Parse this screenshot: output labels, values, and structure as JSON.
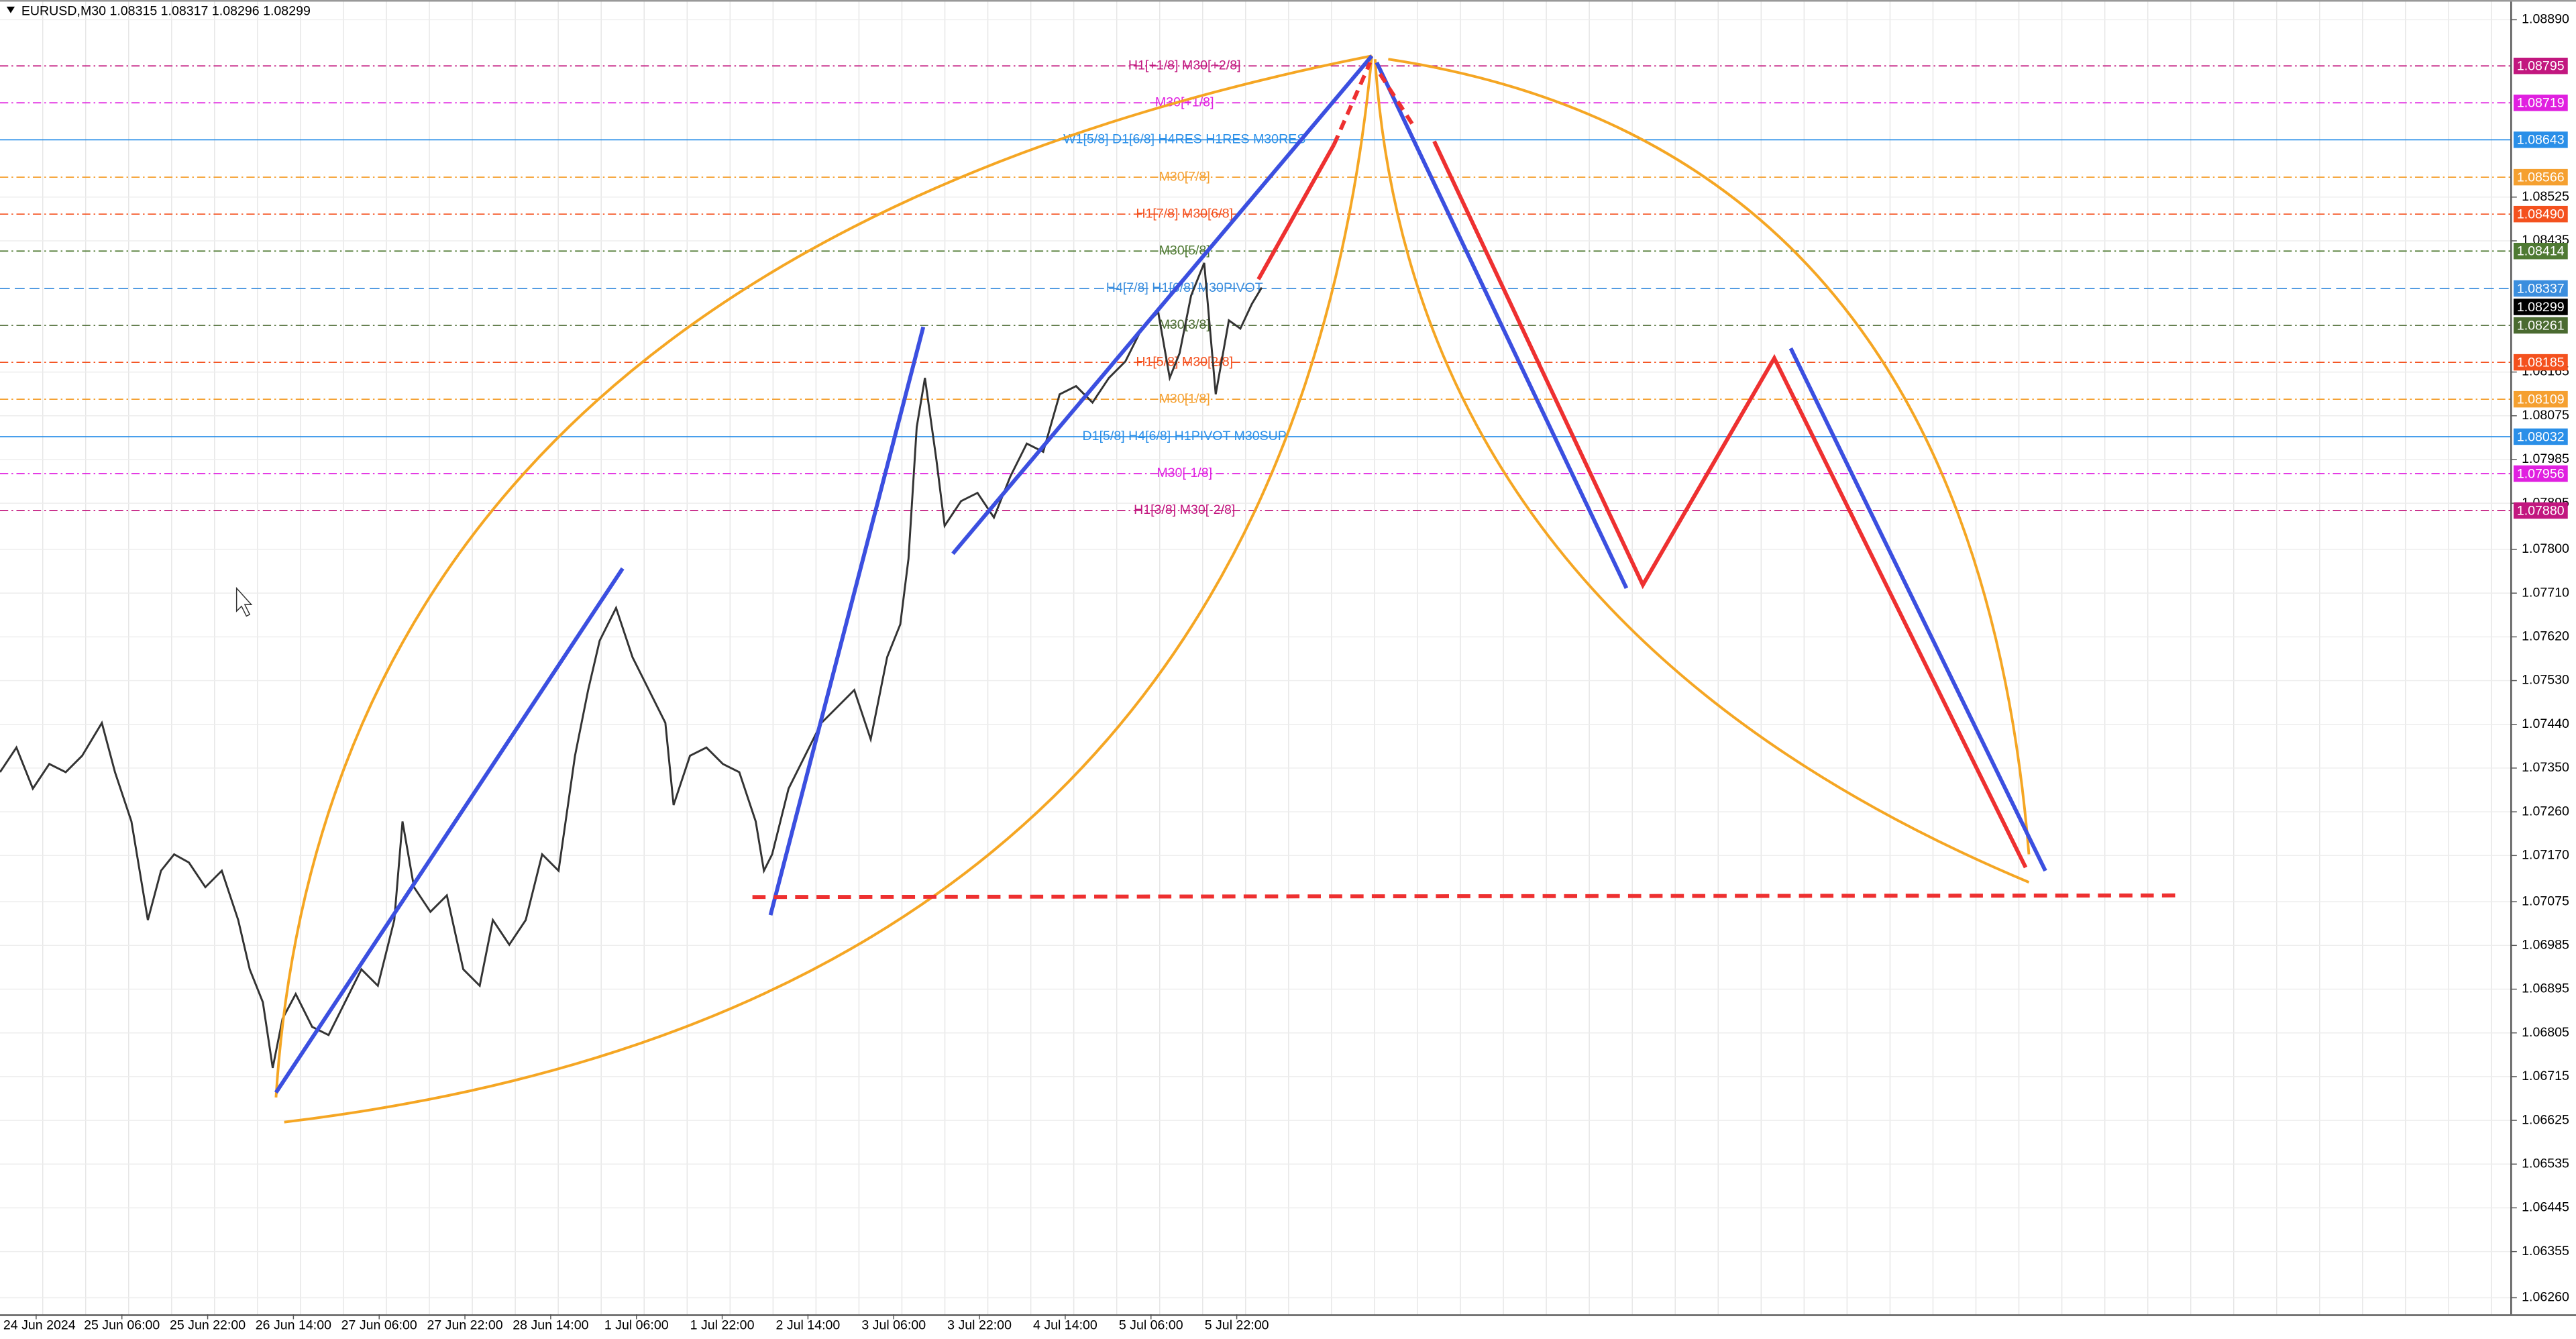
{
  "header": {
    "title": "EURUSD,M30  1.08315 1.08317 1.08296 1.08299"
  },
  "price_axis": [
    "1.08890",
    "1.08525",
    "1.08435",
    "1.08165",
    "1.08075",
    "1.07985",
    "1.07895",
    "1.07800",
    "1.07710",
    "1.07620",
    "1.07530",
    "1.07440",
    "1.07350",
    "1.07260",
    "1.07170",
    "1.07075",
    "1.06985",
    "1.06895",
    "1.06805",
    "1.06715",
    "1.06625",
    "1.06535",
    "1.06445",
    "1.06355",
    "1.06260"
  ],
  "price_tags": [
    {
      "price": "1.08795",
      "color": "#c2177f"
    },
    {
      "price": "1.08719",
      "color": "#e020e0"
    },
    {
      "price": "1.08643",
      "color": "#2a8fe8"
    },
    {
      "price": "1.08566",
      "color": "#f5a030"
    },
    {
      "price": "1.08490",
      "color": "#f4511e"
    },
    {
      "price": "1.08414",
      "color": "#4f7a33"
    },
    {
      "price": "1.08337",
      "color": "#3b8ede"
    },
    {
      "price": "1.08299",
      "color": "#000000"
    },
    {
      "price": "1.08261",
      "color": "#4a6a30"
    },
    {
      "price": "1.08185",
      "color": "#f4511e"
    },
    {
      "price": "1.08109",
      "color": "#f5a030"
    },
    {
      "price": "1.08032",
      "color": "#2a8fe8"
    },
    {
      "price": "1.07956",
      "color": "#e020e0"
    },
    {
      "price": "1.07880",
      "color": "#c2177f"
    }
  ],
  "levels": [
    {
      "label": "H1[+1/8] M30[+2/8]",
      "price": "1.08795",
      "color": "#c2177f"
    },
    {
      "label": "M30[+1/8]",
      "price": "1.08719",
      "color": "#e020e0"
    },
    {
      "label": "W1[5/8] D1[6/8] H4RES H1RES M30RES",
      "price": "1.08643",
      "color": "#2a8fe8"
    },
    {
      "label": "M30[7/8]",
      "price": "1.08566",
      "color": "#f5a030"
    },
    {
      "label": "H1[7/8] M30[6/8]",
      "price": "1.08490",
      "color": "#f4511e"
    },
    {
      "label": "M30[5/8]",
      "price": "1.08414",
      "color": "#4f7a33"
    },
    {
      "label": "H4[7/8] H1[6/8] M30PIVOT",
      "price": "1.08337",
      "color": "#3b8ede"
    },
    {
      "label": "M30[3/8]",
      "price": "1.08261",
      "color": "#4a6a30"
    },
    {
      "label": "H1[5/8] M30[2/8]",
      "price": "1.08185",
      "color": "#f4511e"
    },
    {
      "label": "M30[1/8]",
      "price": "1.08109",
      "color": "#f5a030"
    },
    {
      "label": "D1[5/8] H4[6/8] H1PIVOT M30SUP",
      "price": "1.08032",
      "color": "#2a8fe8"
    },
    {
      "label": "M30[-1/8]",
      "price": "1.07956",
      "color": "#e020e0"
    },
    {
      "label": "H1[3/8] M30[-2/8]",
      "price": "1.07880",
      "color": "#c2177f"
    }
  ],
  "time_axis": [
    "24 Jun 2024",
    "25 Jun 06:00",
    "25 Jun 22:00",
    "26 Jun 14:00",
    "27 Jun 06:00",
    "27 Jun 22:00",
    "28 Jun 14:00",
    "1 Jul 06:00",
    "1 Jul 22:00",
    "2 Jul 14:00",
    "3 Jul 06:00",
    "3 Jul 22:00",
    "4 Jul 14:00",
    "5 Jul 06:00",
    "5 Jul 22:00"
  ]
}
